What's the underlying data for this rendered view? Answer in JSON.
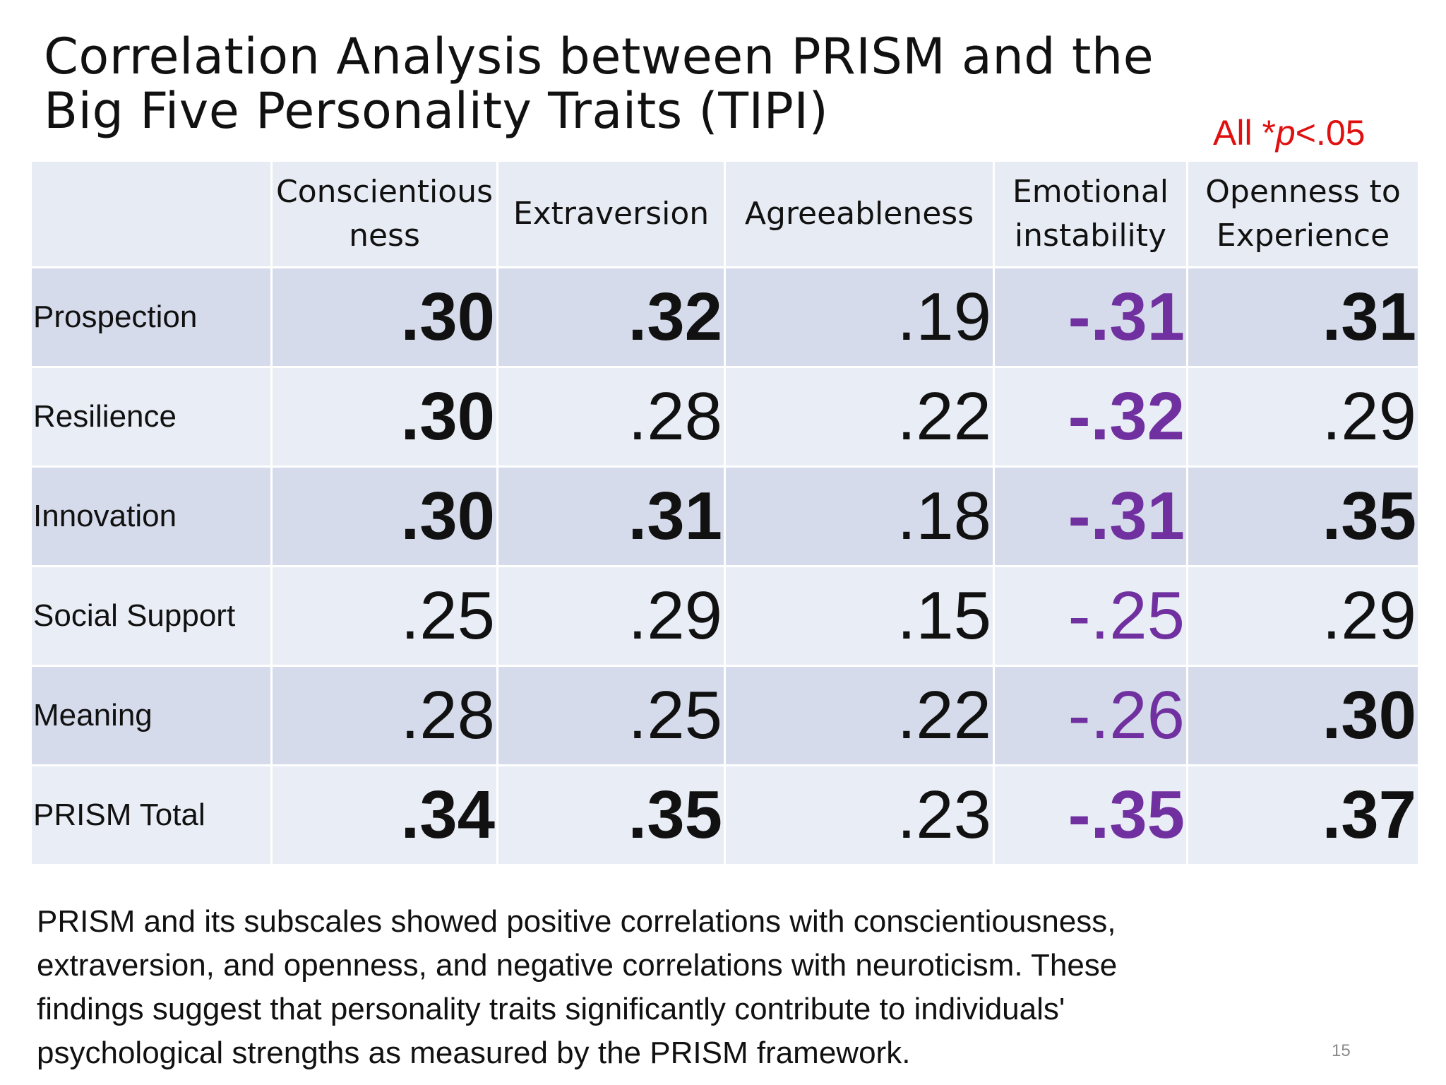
{
  "slide": {
    "title_lines": [
      "Correlation Analysis between PRISM and the",
      "Big Five Personality Traits (TIPI)"
    ],
    "significance_note": {
      "prefix": "All *",
      "italic": "p",
      "suffix": "<.05"
    },
    "summary_lines": [
      "PRISM and its subscales showed positive correlations with conscientiousness,",
      "extraversion, and openness, and negative correlations with neuroticism. These",
      "findings suggest that personality traits significantly contribute to individuals'",
      "psychological strengths as measured by the PRISM framework."
    ],
    "page_number": "15"
  },
  "colors": {
    "note_red": "#e01010",
    "negative_purple": "#7030a0",
    "header_bg": "#e7ebf3",
    "row_dark_bg": "#d5dbea",
    "row_light_bg": "#e9edf5"
  },
  "table": {
    "columns": [
      {
        "lines": [
          "Conscientious",
          "ness"
        ]
      },
      {
        "lines": [
          "Extraversion"
        ]
      },
      {
        "lines": [
          "Agreeableness"
        ]
      },
      {
        "lines": [
          "Emotional",
          "instability"
        ]
      },
      {
        "lines": [
          "Openness to",
          "Experience"
        ]
      }
    ],
    "rows": [
      {
        "label": "Prospection",
        "cells": [
          {
            "value": ".30",
            "bold": true,
            "negative": false
          },
          {
            "value": ".32",
            "bold": true,
            "negative": false
          },
          {
            "value": ".19",
            "bold": false,
            "negative": false
          },
          {
            "value": "-.31",
            "bold": true,
            "negative": true
          },
          {
            "value": ".31",
            "bold": true,
            "negative": false
          }
        ]
      },
      {
        "label": "Resilience",
        "cells": [
          {
            "value": ".30",
            "bold": true,
            "negative": false
          },
          {
            "value": ".28",
            "bold": false,
            "negative": false
          },
          {
            "value": ".22",
            "bold": false,
            "negative": false
          },
          {
            "value": "-.32",
            "bold": true,
            "negative": true
          },
          {
            "value": ".29",
            "bold": false,
            "negative": false
          }
        ]
      },
      {
        "label": "Innovation",
        "cells": [
          {
            "value": ".30",
            "bold": true,
            "negative": false
          },
          {
            "value": ".31",
            "bold": true,
            "negative": false
          },
          {
            "value": ".18",
            "bold": false,
            "negative": false
          },
          {
            "value": "-.31",
            "bold": true,
            "negative": true
          },
          {
            "value": ".35",
            "bold": true,
            "negative": false
          }
        ]
      },
      {
        "label": "Social Support",
        "cells": [
          {
            "value": ".25",
            "bold": false,
            "negative": false
          },
          {
            "value": ".29",
            "bold": false,
            "negative": false
          },
          {
            "value": ".15",
            "bold": false,
            "negative": false
          },
          {
            "value": "-.25",
            "bold": false,
            "negative": true
          },
          {
            "value": ".29",
            "bold": false,
            "negative": false
          }
        ]
      },
      {
        "label": "Meaning",
        "cells": [
          {
            "value": ".28",
            "bold": false,
            "negative": false
          },
          {
            "value": ".25",
            "bold": false,
            "negative": false
          },
          {
            "value": ".22",
            "bold": false,
            "negative": false
          },
          {
            "value": "-.26",
            "bold": false,
            "negative": true
          },
          {
            "value": ".30",
            "bold": true,
            "negative": false
          }
        ]
      },
      {
        "label": "PRISM Total",
        "cells": [
          {
            "value": ".34",
            "bold": true,
            "negative": false
          },
          {
            "value": ".35",
            "bold": true,
            "negative": false
          },
          {
            "value": ".23",
            "bold": false,
            "negative": false
          },
          {
            "value": "-.35",
            "bold": true,
            "negative": true
          },
          {
            "value": ".37",
            "bold": true,
            "negative": false
          }
        ]
      }
    ]
  }
}
